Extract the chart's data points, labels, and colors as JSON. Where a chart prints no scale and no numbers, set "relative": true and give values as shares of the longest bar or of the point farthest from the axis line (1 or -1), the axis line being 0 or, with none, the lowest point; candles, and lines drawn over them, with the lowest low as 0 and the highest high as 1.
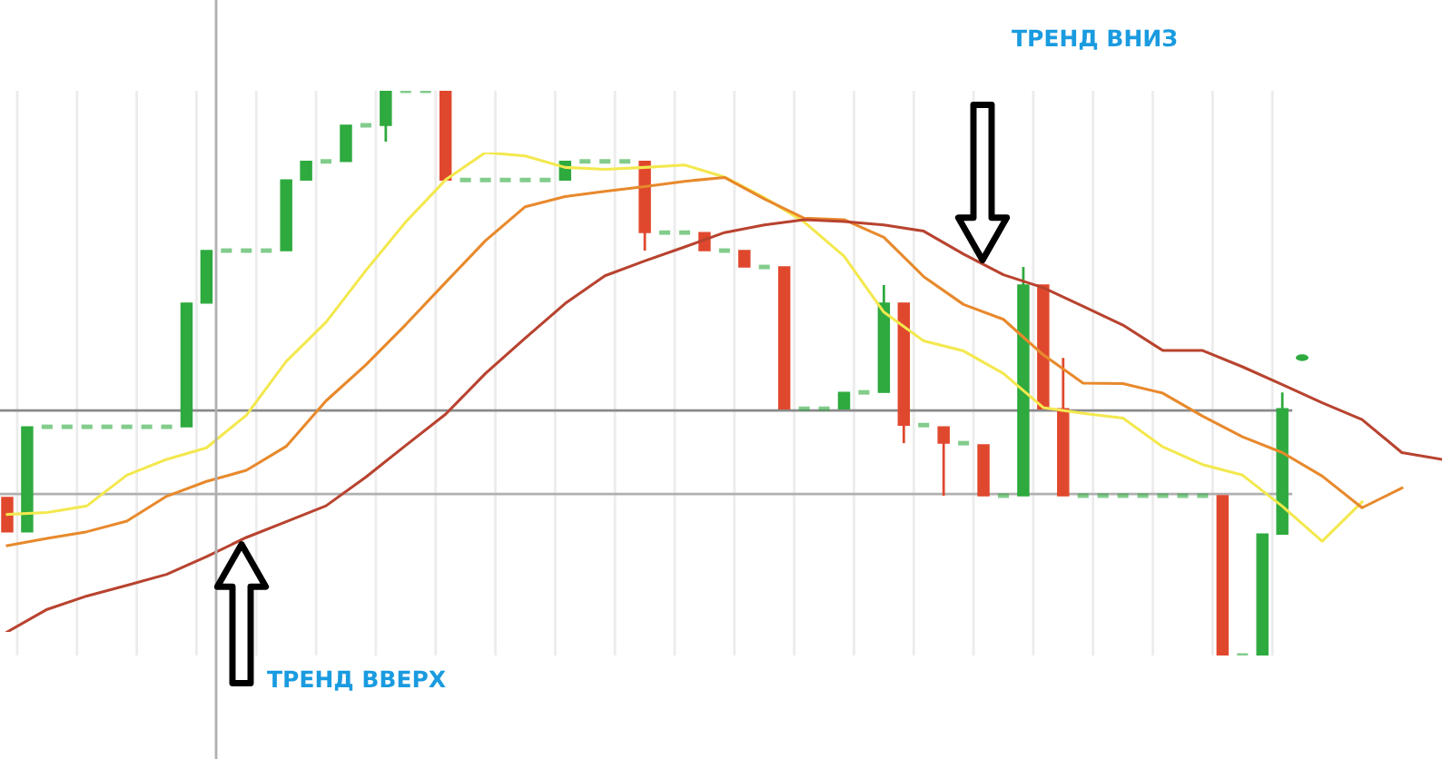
{
  "chart_data": [
    {
      "type": "candlestick",
      "relative": true,
      "grid": "x",
      "categories": [
        null,
        null,
        null,
        null,
        null,
        null,
        null,
        null,
        null,
        null,
        null,
        null,
        null,
        null,
        null,
        null,
        null,
        null,
        null,
        null,
        null,
        null,
        null,
        null,
        null,
        null,
        null,
        null,
        null,
        null,
        null,
        null,
        null,
        null,
        null,
        null,
        null,
        null,
        null,
        null,
        null,
        null,
        null,
        null,
        null,
        null,
        null,
        null,
        null,
        null,
        null,
        null,
        null,
        null,
        null,
        null,
        null,
        null,
        null,
        null,
        null,
        null,
        null,
        null,
        null
      ],
      "ohlc": [
        [
          0.28,
          0.28,
          0.219,
          0.219
        ],
        [
          0.219,
          0.405,
          0.219,
          0.405
        ],
        [
          0.405,
          0.405,
          0.405,
          0.405
        ],
        [
          0.405,
          0.405,
          0.405,
          0.405
        ],
        [
          0.405,
          0.405,
          0.405,
          0.405
        ],
        [
          0.405,
          0.405,
          0.405,
          0.405
        ],
        [
          0.405,
          0.405,
          0.405,
          0.405
        ],
        [
          0.405,
          0.405,
          0.405,
          0.405
        ],
        [
          0.405,
          0.405,
          0.405,
          0.405
        ],
        [
          0.405,
          0.624,
          0.405,
          0.624
        ],
        [
          0.624,
          0.717,
          0.624,
          0.717
        ],
        [
          0.717,
          0.717,
          0.717,
          0.717
        ],
        [
          0.717,
          0.717,
          0.717,
          0.717
        ],
        [
          0.717,
          0.717,
          0.717,
          0.717
        ],
        [
          0.717,
          0.842,
          0.717,
          0.842
        ],
        [
          0.842,
          0.875,
          0.842,
          0.875
        ],
        [
          0.875,
          0.875,
          0.875,
          0.875
        ],
        [
          0.875,
          0.939,
          0.875,
          0.939
        ],
        [
          0.939,
          0.939,
          0.939,
          0.939
        ],
        [
          0.939,
          1,
          0.91,
          1
        ],
        [
          1,
          1,
          1,
          1
        ],
        [
          1,
          1,
          1,
          1
        ],
        [
          1,
          1,
          0.842,
          0.842
        ],
        [
          0.842,
          0.842,
          0.842,
          0.842
        ],
        [
          0.842,
          0.842,
          0.842,
          0.842
        ],
        [
          0.842,
          0.842,
          0.842,
          0.842
        ],
        [
          0.842,
          0.842,
          0.842,
          0.842
        ],
        [
          0.842,
          0.842,
          0.842,
          0.842
        ],
        [
          0.842,
          0.875,
          0.842,
          0.875
        ],
        [
          0.875,
          0.875,
          0.875,
          0.875
        ],
        [
          0.875,
          0.875,
          0.875,
          0.875
        ],
        [
          0.875,
          0.875,
          0.875,
          0.875
        ],
        [
          0.875,
          0.875,
          0.717,
          0.749
        ],
        [
          0.749,
          0.749,
          0.749,
          0.749
        ],
        [
          0.749,
          0.749,
          0.749,
          0.749
        ],
        [
          0.749,
          0.749,
          0.717,
          0.717
        ],
        [
          0.717,
          0.717,
          0.717,
          0.717
        ],
        [
          0.717,
          0.717,
          0.688,
          0.688
        ],
        [
          0.688,
          0.688,
          0.688,
          0.688
        ],
        [
          0.688,
          0.688,
          0.437,
          0.437
        ],
        [
          0.437,
          0.437,
          0.437,
          0.437
        ],
        [
          0.437,
          0.437,
          0.437,
          0.437
        ],
        [
          0.437,
          0.466,
          0.437,
          0.466
        ],
        [
          0.466,
          0.466,
          0.466,
          0.466
        ],
        [
          0.466,
          0.656,
          0.466,
          0.624
        ],
        [
          0.624,
          0.624,
          0.376,
          0.408
        ],
        [
          0.408,
          0.408,
          0.408,
          0.408
        ],
        [
          0.405,
          0.405,
          0.283,
          0.376
        ],
        [
          0.376,
          0.376,
          0.376,
          0.376
        ],
        [
          0.373,
          0.373,
          0.283,
          0.283
        ],
        [
          0.283,
          0.283,
          0.283,
          0.283
        ],
        [
          0.283,
          0.688,
          0.283,
          0.656
        ],
        [
          0.656,
          0.656,
          0.437,
          0.437
        ],
        [
          0.437,
          0.527,
          0.283,
          0.283
        ],
        [
          0.283,
          0.283,
          0.283,
          0.283
        ],
        [
          0.283,
          0.283,
          0.283,
          0.283
        ],
        [
          0.283,
          0.283,
          0.283,
          0.283
        ],
        [
          0.283,
          0.283,
          0.283,
          0.283
        ],
        [
          0.283,
          0.283,
          0.283,
          0.283
        ],
        [
          0.283,
          0.283,
          0.283,
          0.283
        ],
        [
          0.283,
          0.283,
          0.283,
          0.283
        ],
        [
          0.283,
          0.283,
          0,
          0
        ],
        [
          0,
          0,
          0,
          0
        ],
        [
          0,
          0.215,
          0,
          0.215
        ],
        [
          0.215,
          0.466,
          0.215,
          0.437
        ]
      ],
      "colors": [
        "#e0482e",
        "#2eaa3f",
        "#2eaa3f",
        "#2eaa3f",
        "#2eaa3f",
        "#2eaa3f",
        "#2eaa3f",
        "#2eaa3f",
        "#2eaa3f",
        "#2eaa3f",
        "#2eaa3f",
        "#2eaa3f",
        "#2eaa3f",
        "#2eaa3f",
        "#2eaa3f",
        "#2eaa3f",
        "#2eaa3f",
        "#2eaa3f",
        "#2eaa3f",
        "#2eaa3f",
        "#2eaa3f",
        "#2eaa3f",
        "#e0482e",
        "#2eaa3f",
        "#2eaa3f",
        "#2eaa3f",
        "#2eaa3f",
        "#2eaa3f",
        "#2eaa3f",
        "#2eaa3f",
        "#2eaa3f",
        "#2eaa3f",
        "#e0482e",
        "#2eaa3f",
        "#2eaa3f",
        "#e0482e",
        "#2eaa3f",
        "#e0482e",
        "#2eaa3f",
        "#e0482e",
        "#2eaa3f",
        "#2eaa3f",
        "#2eaa3f",
        "#2eaa3f",
        "#2eaa3f",
        "#e0482e",
        "#2eaa3f",
        "#e0482e",
        "#2eaa3f",
        "#e0482e",
        "#2eaa3f",
        "#2eaa3f",
        "#e0482e",
        "#e0482e",
        "#2eaa3f",
        "#2eaa3f",
        "#2eaa3f",
        "#2eaa3f",
        "#2eaa3f",
        "#2eaa3f",
        "#2eaa3f",
        "#e0482e",
        "#2eaa3f",
        "#2eaa3f",
        "#2eaa3f"
      ],
      "ref_lines": [
        {
          "axis": "y",
          "value": 0.434,
          "color": "#8a8a8a"
        },
        {
          "axis": "y",
          "value": 0.286,
          "color": "#b0b0b0"
        }
      ],
      "annotations": [
        "ТРЕНД ВНИЗ",
        "ТРЕНД ВВЕРХ"
      ]
    },
    {
      "type": "line",
      "relative": true,
      "categories": [
        null,
        null,
        null,
        null,
        null,
        null,
        null,
        null,
        null,
        null,
        null,
        null,
        null,
        null,
        null,
        null,
        null,
        null,
        null,
        null,
        null,
        null,
        null,
        null,
        null,
        null,
        null,
        null,
        null,
        null,
        null,
        null,
        null,
        null,
        null,
        null,
        null
      ],
      "series": [
        {
          "color": "#f3e84e",
          "values": [
            0.245,
            0.249,
            0.263,
            0.327,
            0.36,
            0.384,
            0.452,
            0.564,
            0.646,
            0.754,
            0.855,
            0.943,
            1,
            0.993,
            0.969,
            0.965,
            0.969,
            0.974,
            0.949,
            0.906,
            0.855,
            0.784,
            0.667,
            0.607,
            0.586,
            0.539,
            0.468,
            0.456,
            0.446,
            0.386,
            0.349,
            0.327,
            0.262,
            0.189,
            0.271,
            null,
            null
          ]
        },
        {
          "color": "#e8892c",
          "values": [
            0.18,
            0.195,
            0.209,
            0.231,
            0.283,
            0.314,
            0.337,
            0.387,
            0.482,
            0.557,
            0.641,
            0.729,
            0.816,
            0.887,
            0.908,
            0.919,
            0.929,
            0.94,
            0.948,
            0.903,
            0.863,
            0.86,
            0.823,
            0.741,
            0.683,
            0.652,
            0.578,
            0.519,
            0.518,
            0.498,
            0.45,
            0.407,
            0.374,
            0.325,
            0.259,
            0.3,
            null
          ]
        },
        {
          "color": "#b8432f",
          "values": [
            0,
            0.047,
            0.075,
            0.097,
            0.12,
            0.157,
            0.197,
            0.23,
            0.263,
            0.323,
            0.389,
            0.454,
            0.539,
            0.613,
            0.685,
            0.743,
            0.774,
            0.803,
            0.833,
            0.849,
            0.86,
            0.856,
            0.849,
            0.836,
            0.788,
            0.745,
            0.718,
            0.679,
            0.64,
            0.587,
            0.587,
            0.553,
            0.516,
            0.478,
            0.443,
            0.374,
            0.36
          ]
        }
      ]
    }
  ]
}
